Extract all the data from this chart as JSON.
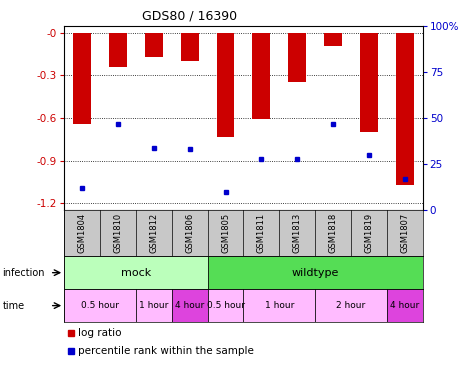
{
  "title": "GDS80 / 16390",
  "samples": [
    "GSM1804",
    "GSM1810",
    "GSM1812",
    "GSM1806",
    "GSM1805",
    "GSM1811",
    "GSM1813",
    "GSM1818",
    "GSM1819",
    "GSM1807"
  ],
  "log_ratios": [
    -0.64,
    -0.24,
    -0.17,
    -0.2,
    -0.73,
    -0.61,
    -0.35,
    -0.09,
    -0.7,
    -1.07
  ],
  "percentile_ranks": [
    12,
    47,
    34,
    33,
    10,
    28,
    28,
    47,
    30,
    17
  ],
  "ylim_left": [
    -1.25,
    0.05
  ],
  "left_ticks": [
    0.0,
    -0.3,
    -0.6,
    -0.9,
    -1.2
  ],
  "left_tick_labels": [
    "-0",
    "-0.3",
    "-0.6",
    "-0.9",
    "-1.2"
  ],
  "right_tick_labels": [
    "100%",
    "75",
    "50",
    "25",
    "0"
  ],
  "bar_color": "#cc0000",
  "dot_color": "#0000cc",
  "infection_groups": [
    {
      "label": "mock",
      "start": 0,
      "end": 4,
      "color": "#bbffbb"
    },
    {
      "label": "wildtype",
      "start": 4,
      "end": 10,
      "color": "#55dd55"
    }
  ],
  "time_groups": [
    {
      "label": "0.5 hour",
      "start": 0,
      "end": 2,
      "color": "#ffbbff"
    },
    {
      "label": "1 hour",
      "start": 2,
      "end": 3,
      "color": "#ffbbff"
    },
    {
      "label": "4 hour",
      "start": 3,
      "end": 4,
      "color": "#dd44dd"
    },
    {
      "label": "0.5 hour",
      "start": 4,
      "end": 5,
      "color": "#ffbbff"
    },
    {
      "label": "1 hour",
      "start": 5,
      "end": 7,
      "color": "#ffbbff"
    },
    {
      "label": "2 hour",
      "start": 7,
      "end": 9,
      "color": "#ffbbff"
    },
    {
      "label": "4 hour",
      "start": 9,
      "end": 10,
      "color": "#dd44dd"
    }
  ],
  "bg_color": "#ffffff",
  "legend_items": [
    "log ratio",
    "percentile rank within the sample"
  ]
}
